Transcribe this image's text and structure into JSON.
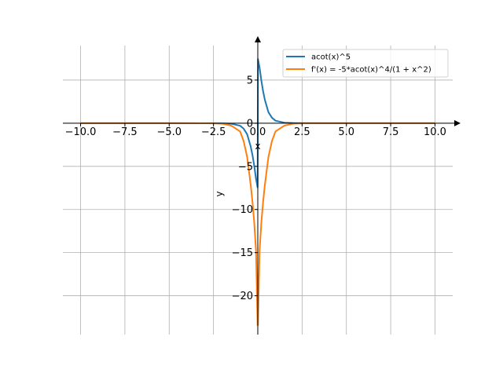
{
  "chart_data": {
    "type": "line",
    "xlabel": "x",
    "ylabel": "y",
    "xlim": [
      -11,
      11
    ],
    "ylim": [
      -24.5,
      9.0
    ],
    "grid": true,
    "legend_position": "top-right",
    "x_ticks": [
      -10,
      -7.5,
      -5,
      -2.5,
      0,
      2.5,
      5,
      7.5,
      10
    ],
    "x_tick_labels": [
      "−10.0",
      "−7.5",
      "−5.0",
      "−2.5",
      "0.0",
      "2.5",
      "5.0",
      "7.5",
      "10.0"
    ],
    "y_ticks": [
      5,
      0,
      -5,
      -10,
      -15,
      -20
    ],
    "y_tick_labels": [
      "5",
      "0",
      "−5",
      "−10",
      "−15",
      "−20"
    ],
    "series": [
      {
        "name": "acot(x)^5",
        "color": "#1f77b4",
        "x": [
          -10,
          -5,
          -2.5,
          -2,
          -1.5,
          -1,
          -0.8,
          -0.6,
          -0.4,
          -0.3,
          -0.2,
          -0.1,
          -0.01,
          0.01,
          0.1,
          0.2,
          0.3,
          0.4,
          0.6,
          0.8,
          1,
          1.5,
          2,
          2.5,
          5,
          10
        ],
        "y": [
          0.0,
          0.0,
          -0.01,
          -0.02,
          -0.06,
          -0.29,
          -0.63,
          -1.28,
          -2.7,
          -3.7,
          -4.94,
          -6.46,
          -7.44,
          7.44,
          6.46,
          4.94,
          3.7,
          2.7,
          1.28,
          0.63,
          0.29,
          0.06,
          0.02,
          0.01,
          0.0,
          0.0
        ]
      },
      {
        "name": "f'(x) = -5*acot(x)^4/(1 + x^2)",
        "color": "#ff7f0e",
        "x": [
          -10,
          -5,
          -3,
          -2.5,
          -2,
          -1.5,
          -1,
          -0.8,
          -0.6,
          -0.4,
          -0.3,
          -0.2,
          -0.1,
          -0.01,
          0.01,
          0.1,
          0.2,
          0.3,
          0.4,
          0.6,
          0.8,
          1,
          1.5,
          2,
          2.5,
          3,
          5,
          10
        ],
        "y": [
          0.0,
          0.0,
          -0.01,
          -0.02,
          -0.06,
          -0.28,
          -0.95,
          -2.05,
          -3.92,
          -7.13,
          -9.12,
          -11.52,
          -14.84,
          -23.4,
          -23.4,
          -14.84,
          -11.52,
          -9.12,
          -7.13,
          -3.92,
          -2.05,
          -0.95,
          -0.28,
          -0.06,
          -0.02,
          -0.01,
          0.0,
          0.0
        ]
      }
    ]
  }
}
